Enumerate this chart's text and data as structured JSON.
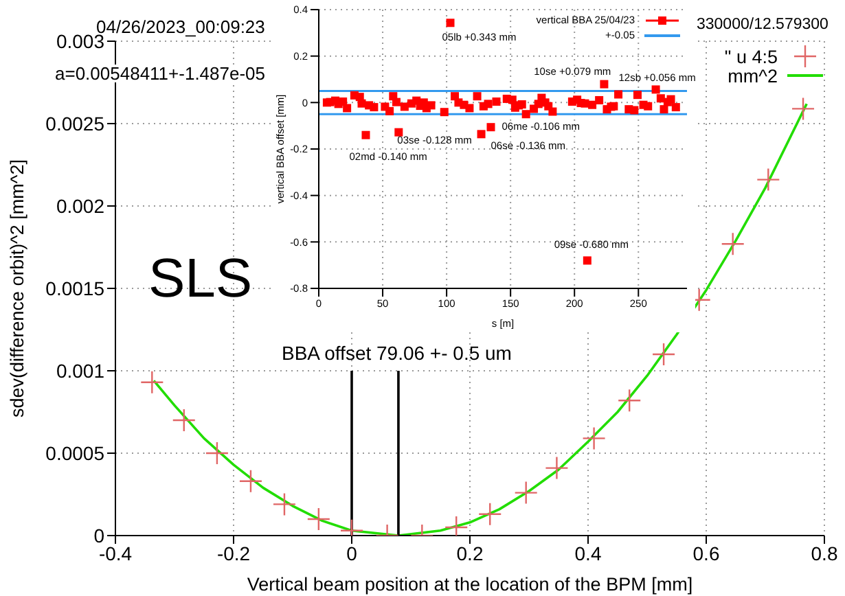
{
  "chart_data": [
    {
      "type": "scatter",
      "xlabel": "Vertical beam position at the location of the  BPM [mm]",
      "ylabel": "sdev(difference orbit)^2 [mm^2]",
      "xlim": [
        -0.4,
        0.8
      ],
      "ylim": [
        0,
        0.003
      ],
      "xticks": [
        -0.4,
        -0.2,
        0,
        0.2,
        0.4,
        0.6,
        0.8
      ],
      "yticks": [
        0,
        0.0005,
        0.001,
        0.0015,
        0.002,
        0.0025,
        0.003
      ],
      "grid": true,
      "legend": "top right",
      "annotations": [
        "04/26/2023_00:09:23",
        "330000/12.579300",
        "a=0.00548411+-1.487e-05",
        "SLS",
        "BBA offset 79.06 +- 0.5 um"
      ],
      "series": [
        {
          "name": "\" u 4:5",
          "marker": "cross",
          "color": "#e06666",
          "x": [
            -0.338,
            -0.284,
            -0.228,
            -0.171,
            -0.114,
            -0.056,
            0,
            0.06,
            0.119,
            0.177,
            0.234,
            0.295,
            0.347,
            0.41,
            0.47,
            0.528,
            0.588,
            0.645,
            0.705,
            0.764
          ],
          "values": [
            0.00093,
            0.0007,
            0.0005,
            0.00033,
            0.00019,
            0.0001,
            3e-05,
            0,
            0,
            5e-05,
            0.00013,
            0.00026,
            0.00041,
            0.00059,
            0.00082,
            0.0011,
            0.00143,
            0.00177,
            0.00216,
            0.00259
          ]
        },
        {
          "name": "mm^2",
          "type": "line",
          "color": "#22dd00",
          "x": [
            -0.335,
            -0.3,
            -0.25,
            -0.2,
            -0.15,
            -0.1,
            -0.05,
            0,
            0.079,
            0.15,
            0.2,
            0.25,
            0.3,
            0.35,
            0.4,
            0.45,
            0.5,
            0.55,
            0.6,
            0.65,
            0.7,
            0.77
          ],
          "values": [
            0.00094,
            0.00079,
            0.00059,
            0.00043,
            0.00029,
            0.00018,
            9e-05,
            3e-05,
            0,
            3e-05,
            8e-05,
            0.00016,
            0.00027,
            0.0004,
            0.00057,
            0.00075,
            0.00097,
            0.00122,
            0.00149,
            0.00179,
            0.00211,
            0.00262
          ]
        },
        {
          "type": "line",
          "color": "#000000",
          "x": [
            0,
            0
          ],
          "values": [
            0,
            0.001
          ]
        },
        {
          "type": "line",
          "color": "#000000",
          "x": [
            0.079,
            0.079
          ],
          "values": [
            0,
            0.001
          ]
        }
      ]
    },
    {
      "type": "scatter",
      "xlabel": "s [m]",
      "ylabel": "vertical BBA offset [mm]",
      "xlim": [
        0,
        288
      ],
      "ylim": [
        -0.8,
        0.4
      ],
      "xticks": [
        0,
        50,
        100,
        150,
        200,
        250
      ],
      "yticks": [
        -0.8,
        -0.6,
        -0.4,
        -0.2,
        0,
        0.2,
        0.4
      ],
      "grid": true,
      "legend": "top right",
      "annotations": [
        {
          "text": "05lb +0.343 mm",
          "x": 102.9,
          "y": 0.343
        },
        {
          "text": "02md -0.140 mm",
          "x": 36.8,
          "y": -0.14
        },
        {
          "text": "03se -0.128 mm",
          "x": 62.5,
          "y": -0.128
        },
        {
          "text": "06me -0.106 mm",
          "x": 134.6,
          "y": -0.106
        },
        {
          "text": "06se -0.136 mm",
          "x": 127.1,
          "y": -0.136
        },
        {
          "text": "10se +0.079 mm",
          "x": 223.2,
          "y": 0.079
        },
        {
          "text": "12sb +0.056 mm",
          "x": 263.6,
          "y": 0.056
        },
        {
          "text": "09se -0.680 mm",
          "x": 210,
          "y": -0.68
        }
      ],
      "series": [
        {
          "name": "vertical BBA 25/04/23",
          "marker": "square",
          "color": "#ff0000",
          "x": [
            6.4,
            8.9,
            12.9,
            15.4,
            18.9,
            22.1,
            27.9,
            32.1,
            33.6,
            36.8,
            39.3,
            43.2,
            51.8,
            55.4,
            58.2,
            60.7,
            62.5,
            67.1,
            72.5,
            76.4,
            79.3,
            82.1,
            84.3,
            87.9,
            98.2,
            102.9,
            106.4,
            109.3,
            113.6,
            117.9,
            123.9,
            127.1,
            128.9,
            132.5,
            134.6,
            138.9,
            147.1,
            151.4,
            153.6,
            156.4,
            158.9,
            162.1,
            168.2,
            171.8,
            174.3,
            177.1,
            179.6,
            182.9,
            198.2,
            202.1,
            205,
            208.2,
            210,
            213.9,
            219.3,
            223.2,
            225.4,
            228.6,
            230.7,
            234.3,
            242.5,
            246.8,
            249.3,
            253.9,
            257.5,
            263.6,
            267.5,
            270,
            272.9,
            275.4,
            279.3
          ],
          "values": [
            0,
            0.002,
            0.008,
            -0.006,
            0.004,
            -0.024,
            0.031,
            0.024,
            -0.004,
            -0.14,
            -0.012,
            -0.02,
            -0.018,
            -0.037,
            0.027,
            0.002,
            -0.128,
            -0.018,
            -0.004,
            0.008,
            -0.014,
            0,
            -0.024,
            -0.012,
            -0.041,
            0.343,
            0.027,
            0,
            -0.01,
            -0.024,
            0.027,
            -0.136,
            -0.016,
            -0.006,
            -0.106,
            0.004,
            0.016,
            0.012,
            -0.022,
            -0.012,
            -0.008,
            -0.05,
            -0.027,
            -0.006,
            0.02,
            0,
            -0.016,
            -0.039,
            0.004,
            0.012,
            -0.002,
            -0.004,
            -0.68,
            -0.01,
            0.01,
            0.079,
            -0.029,
            -0.018,
            -0.016,
            0.035,
            -0.029,
            -0.033,
            0.033,
            -0.01,
            -0.016,
            0.056,
            0.018,
            -0.029,
            0.002,
            0.014,
            -0.02
          ]
        },
        {
          "name": "+-0.05",
          "type": "line",
          "color": "#3399ee",
          "x": [
            0,
            288
          ],
          "values": [
            0.05,
            0.05
          ]
        },
        {
          "type": "line",
          "color": "#3399ee",
          "x": [
            0,
            288
          ],
          "values": [
            -0.05,
            -0.05
          ]
        }
      ]
    }
  ]
}
